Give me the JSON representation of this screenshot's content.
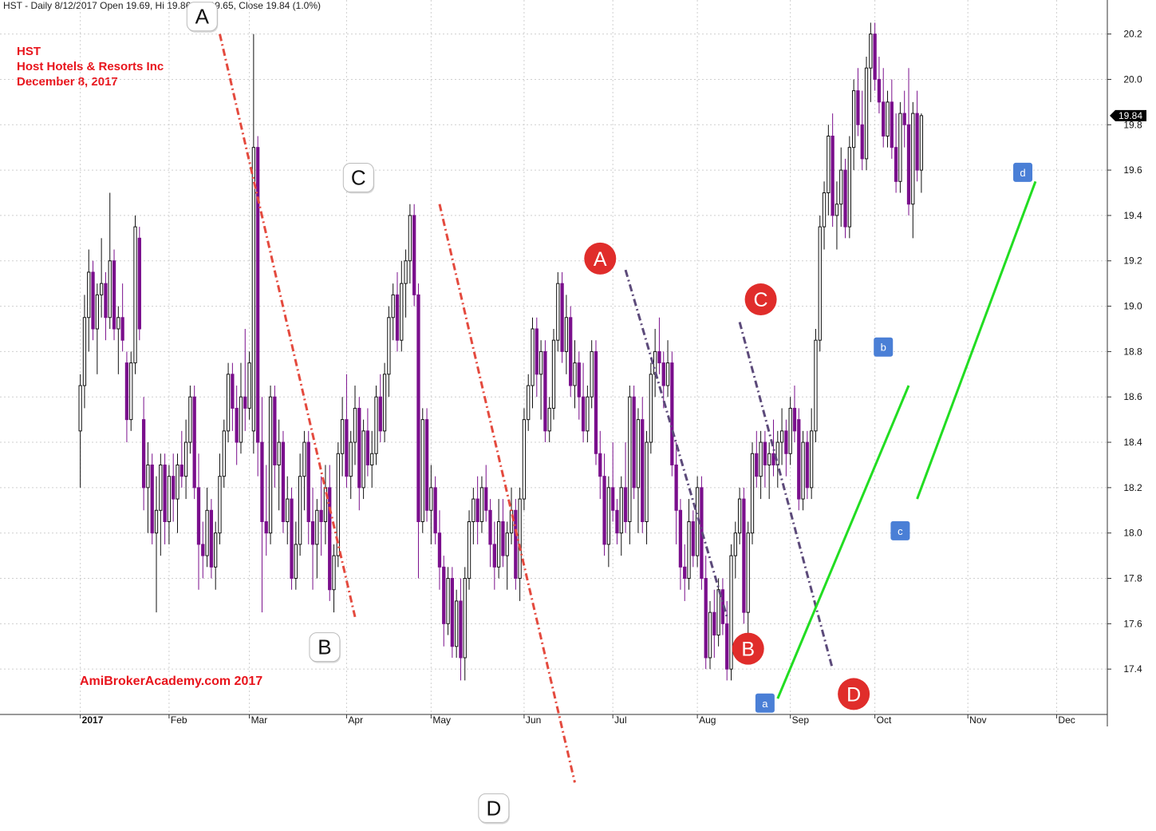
{
  "header": {
    "text": "HST - Daily 8/12/2017 Open 19.69, Hi 19.86, Lo 19.65, Close 19.84 (1.0%)"
  },
  "info": {
    "ticker": "HST",
    "company": "Host Hotels & Resorts Inc",
    "date": "December 8, 2017"
  },
  "watermark": "AmiBrokerAcademy.com  2017",
  "colors": {
    "bull": "#111111",
    "bear": "#7a0f8c",
    "red_dash": "#e44a3e",
    "purple_dash": "#5c4a7a",
    "green": "#22dd22",
    "badge_red": "#e02d2b",
    "badge_blue": "#4a7fd6"
  },
  "chart_data": {
    "type": "candlestick",
    "title": "HST - Daily",
    "ylim": [
      17.2,
      20.35
    ],
    "y_ticks": [
      "17.4",
      "17.6",
      "17.8",
      "18.0",
      "18.2",
      "18.4",
      "18.6",
      "18.8",
      "19.0",
      "19.2",
      "19.4",
      "19.6",
      "19.8",
      "20.0",
      "20.2"
    ],
    "last_close_label": "19.84",
    "months": [
      {
        "label": "2017",
        "day": 0
      },
      {
        "label": "Feb",
        "day": 21
      },
      {
        "label": "Mar",
        "day": 40
      },
      {
        "label": "Apr",
        "day": 63
      },
      {
        "label": "May",
        "day": 83
      },
      {
        "label": "Jun",
        "day": 105
      },
      {
        "label": "Jul",
        "day": 126
      },
      {
        "label": "Aug",
        "day": 146
      },
      {
        "label": "Sep",
        "day": 168
      },
      {
        "label": "Oct",
        "day": 188
      },
      {
        "label": "Nov",
        "day": 210
      },
      {
        "label": "Dec",
        "day": 231
      }
    ],
    "x_domain": [
      -19,
      243
    ],
    "candles": [
      [
        18.45,
        18.7,
        18.2,
        18.65
      ],
      [
        18.65,
        19.05,
        18.55,
        18.95
      ],
      [
        18.95,
        19.25,
        18.8,
        19.15
      ],
      [
        19.15,
        19.2,
        18.85,
        18.9
      ],
      [
        18.9,
        19.1,
        18.7,
        19.05
      ],
      [
        19.05,
        19.3,
        18.95,
        19.1
      ],
      [
        19.1,
        19.15,
        18.85,
        18.95
      ],
      [
        18.95,
        19.5,
        18.9,
        19.2
      ],
      [
        19.2,
        19.25,
        18.85,
        18.9
      ],
      [
        18.9,
        19.0,
        18.7,
        18.95
      ],
      [
        18.95,
        19.1,
        18.8,
        18.85
      ],
      [
        18.75,
        18.8,
        18.4,
        18.5
      ],
      [
        18.5,
        18.8,
        18.45,
        18.75
      ],
      [
        18.75,
        19.4,
        18.7,
        19.35
      ],
      [
        19.3,
        19.35,
        18.85,
        18.9
      ],
      [
        18.5,
        18.6,
        18.1,
        18.2
      ],
      [
        18.2,
        18.4,
        18.0,
        18.3
      ],
      [
        18.3,
        18.35,
        17.95,
        18.0
      ],
      [
        18.0,
        18.25,
        17.65,
        18.1
      ],
      [
        18.1,
        18.35,
        17.9,
        18.3
      ],
      [
        18.3,
        18.35,
        17.95,
        18.05
      ],
      [
        18.05,
        18.3,
        17.95,
        18.25
      ],
      [
        18.25,
        18.35,
        18.05,
        18.15
      ],
      [
        18.15,
        18.35,
        18.0,
        18.3
      ],
      [
        18.3,
        18.45,
        18.2,
        18.25
      ],
      [
        18.25,
        18.5,
        18.15,
        18.4
      ],
      [
        18.4,
        18.65,
        18.35,
        18.6
      ],
      [
        18.6,
        18.65,
        18.15,
        18.2
      ],
      [
        18.2,
        18.35,
        17.75,
        17.95
      ],
      [
        17.95,
        18.05,
        17.8,
        17.9
      ],
      [
        17.9,
        18.2,
        17.85,
        18.1
      ],
      [
        18.1,
        18.15,
        17.8,
        17.85
      ],
      [
        17.85,
        18.05,
        17.75,
        18.0
      ],
      [
        18.0,
        18.35,
        17.95,
        18.25
      ],
      [
        18.25,
        18.5,
        18.2,
        18.45
      ],
      [
        18.45,
        18.75,
        18.4,
        18.7
      ],
      [
        18.7,
        18.75,
        18.45,
        18.55
      ],
      [
        18.55,
        18.65,
        18.3,
        18.4
      ],
      [
        18.4,
        18.75,
        18.35,
        18.6
      ],
      [
        18.6,
        18.9,
        18.45,
        18.55
      ],
      [
        18.55,
        18.8,
        18.5,
        18.75
      ],
      [
        18.45,
        20.2,
        18.35,
        19.7
      ],
      [
        19.7,
        19.75,
        18.25,
        18.4
      ],
      [
        18.4,
        18.6,
        17.65,
        18.05
      ],
      [
        18.05,
        18.3,
        17.9,
        18.0
      ],
      [
        18.0,
        18.65,
        17.95,
        18.6
      ],
      [
        18.6,
        18.65,
        18.2,
        18.3
      ],
      [
        18.3,
        18.5,
        18.1,
        18.4
      ],
      [
        18.4,
        18.45,
        18.0,
        18.05
      ],
      [
        18.05,
        18.25,
        17.95,
        18.15
      ],
      [
        18.15,
        18.2,
        17.75,
        17.8
      ],
      [
        17.8,
        18.05,
        17.75,
        17.95
      ],
      [
        17.95,
        18.35,
        17.9,
        18.25
      ],
      [
        18.25,
        18.45,
        18.1,
        18.4
      ],
      [
        18.4,
        18.45,
        17.95,
        18.05
      ],
      [
        18.05,
        18.2,
        17.75,
        17.95
      ],
      [
        17.95,
        18.15,
        17.8,
        18.1
      ],
      [
        18.1,
        18.25,
        17.9,
        18.05
      ],
      [
        18.05,
        18.3,
        17.95,
        18.2
      ],
      [
        18.2,
        18.3,
        17.7,
        17.75
      ],
      [
        17.75,
        17.95,
        17.65,
        17.9
      ],
      [
        17.9,
        18.4,
        17.85,
        18.35
      ],
      [
        18.35,
        18.6,
        18.25,
        18.5
      ],
      [
        18.5,
        18.7,
        18.2,
        18.25
      ],
      [
        18.25,
        18.45,
        18.15,
        18.4
      ],
      [
        18.4,
        18.65,
        18.3,
        18.55
      ],
      [
        18.55,
        18.6,
        18.1,
        18.2
      ],
      [
        18.2,
        18.5,
        18.15,
        18.45
      ],
      [
        18.45,
        18.55,
        18.25,
        18.3
      ],
      [
        18.3,
        18.45,
        18.2,
        18.35
      ],
      [
        18.35,
        18.65,
        18.3,
        18.6
      ],
      [
        18.6,
        18.7,
        18.4,
        18.45
      ],
      [
        18.45,
        18.75,
        18.4,
        18.7
      ],
      [
        18.7,
        19.0,
        18.6,
        18.95
      ],
      [
        18.95,
        19.1,
        18.85,
        19.05
      ],
      [
        19.05,
        19.15,
        18.8,
        18.85
      ],
      [
        18.85,
        19.2,
        18.8,
        19.1
      ],
      [
        19.1,
        19.25,
        18.95,
        19.2
      ],
      [
        19.2,
        19.45,
        19.1,
        19.4
      ],
      [
        19.4,
        19.45,
        19.0,
        19.05
      ],
      [
        19.05,
        19.1,
        17.8,
        18.05
      ],
      [
        18.05,
        18.55,
        18.0,
        18.5
      ],
      [
        18.5,
        18.55,
        18.05,
        18.1
      ],
      [
        18.1,
        18.3,
        17.95,
        18.2
      ],
      [
        18.2,
        18.25,
        17.95,
        18.0
      ],
      [
        18.0,
        18.1,
        17.75,
        17.85
      ],
      [
        17.85,
        17.9,
        17.5,
        17.6
      ],
      [
        17.6,
        17.85,
        17.55,
        17.8
      ],
      [
        17.8,
        17.85,
        17.45,
        17.5
      ],
      [
        17.5,
        17.75,
        17.45,
        17.7
      ],
      [
        17.7,
        17.8,
        17.35,
        17.45
      ],
      [
        17.45,
        17.85,
        17.35,
        17.8
      ],
      [
        17.8,
        18.1,
        17.75,
        18.05
      ],
      [
        18.05,
        18.2,
        17.95,
        18.15
      ],
      [
        18.15,
        18.25,
        17.95,
        18.05
      ],
      [
        18.05,
        18.25,
        18.0,
        18.2
      ],
      [
        18.2,
        18.3,
        18.05,
        18.1
      ],
      [
        18.1,
        18.15,
        17.85,
        17.95
      ],
      [
        17.95,
        18.05,
        17.75,
        17.85
      ],
      [
        17.85,
        18.15,
        17.8,
        18.05
      ],
      [
        18.05,
        18.15,
        17.85,
        17.9
      ],
      [
        17.9,
        18.05,
        17.75,
        18.0
      ],
      [
        18.0,
        18.2,
        17.95,
        18.1
      ],
      [
        18.1,
        18.15,
        17.75,
        17.8
      ],
      [
        17.8,
        18.2,
        17.7,
        18.15
      ],
      [
        18.15,
        18.55,
        18.1,
        18.5
      ],
      [
        18.5,
        18.7,
        18.45,
        18.65
      ],
      [
        18.65,
        18.95,
        18.55,
        18.9
      ],
      [
        18.9,
        18.95,
        18.6,
        18.7
      ],
      [
        18.7,
        18.85,
        18.5,
        18.8
      ],
      [
        18.8,
        18.85,
        18.4,
        18.45
      ],
      [
        18.45,
        18.6,
        18.4,
        18.55
      ],
      [
        18.55,
        18.9,
        18.5,
        18.85
      ],
      [
        18.85,
        19.15,
        18.8,
        19.1
      ],
      [
        19.1,
        19.15,
        18.75,
        18.8
      ],
      [
        18.8,
        19.05,
        18.7,
        18.95
      ],
      [
        18.95,
        19.0,
        18.6,
        18.65
      ],
      [
        18.65,
        18.85,
        18.55,
        18.75
      ],
      [
        18.75,
        18.8,
        18.5,
        18.6
      ],
      [
        18.6,
        18.75,
        18.4,
        18.45
      ],
      [
        18.45,
        18.65,
        18.4,
        18.6
      ],
      [
        18.6,
        18.85,
        18.55,
        18.8
      ],
      [
        18.8,
        18.85,
        18.3,
        18.35
      ],
      [
        18.35,
        18.45,
        18.15,
        18.25
      ],
      [
        18.25,
        18.35,
        17.9,
        17.95
      ],
      [
        17.95,
        18.25,
        17.85,
        18.2
      ],
      [
        18.2,
        18.4,
        18.05,
        18.1
      ],
      [
        18.1,
        18.15,
        17.95,
        18.0
      ],
      [
        18.0,
        18.25,
        17.9,
        18.2
      ],
      [
        18.2,
        18.4,
        18.0,
        18.05
      ],
      [
        18.05,
        18.65,
        17.95,
        18.6
      ],
      [
        18.6,
        18.65,
        18.15,
        18.2
      ],
      [
        18.2,
        18.55,
        18.0,
        18.5
      ],
      [
        18.5,
        18.6,
        18.0,
        18.05
      ],
      [
        18.05,
        18.45,
        17.95,
        18.4
      ],
      [
        18.4,
        18.75,
        18.35,
        18.7
      ],
      [
        18.7,
        18.9,
        18.6,
        18.8
      ],
      [
        18.8,
        18.95,
        18.7,
        18.75
      ],
      [
        18.75,
        18.8,
        18.55,
        18.65
      ],
      [
        18.65,
        18.85,
        18.6,
        18.75
      ],
      [
        18.75,
        18.8,
        18.25,
        18.3
      ],
      [
        18.3,
        18.4,
        17.95,
        18.1
      ],
      [
        18.1,
        18.15,
        17.75,
        17.85
      ],
      [
        17.85,
        17.95,
        17.7,
        17.8
      ],
      [
        17.8,
        18.15,
        17.75,
        18.05
      ],
      [
        18.05,
        18.1,
        17.85,
        17.9
      ],
      [
        17.9,
        18.25,
        17.85,
        18.2
      ],
      [
        18.2,
        18.25,
        17.75,
        17.8
      ],
      [
        17.8,
        17.9,
        17.4,
        17.45
      ],
      [
        17.45,
        17.7,
        17.4,
        17.65
      ],
      [
        17.65,
        17.75,
        17.45,
        17.55
      ],
      [
        17.55,
        17.8,
        17.5,
        17.75
      ],
      [
        17.75,
        17.8,
        17.55,
        17.6
      ],
      [
        17.6,
        17.7,
        17.35,
        17.4
      ],
      [
        17.4,
        17.95,
        17.35,
        17.9
      ],
      [
        17.9,
        18.05,
        17.8,
        18.0
      ],
      [
        18.0,
        18.2,
        17.95,
        18.15
      ],
      [
        18.15,
        18.2,
        17.6,
        17.65
      ],
      [
        17.65,
        18.05,
        17.55,
        18.0
      ],
      [
        18.0,
        18.4,
        17.95,
        18.35
      ],
      [
        18.35,
        18.45,
        18.2,
        18.25
      ],
      [
        18.25,
        18.45,
        18.15,
        18.4
      ],
      [
        18.4,
        18.45,
        18.2,
        18.3
      ],
      [
        18.3,
        18.4,
        18.15,
        18.35
      ],
      [
        18.35,
        18.5,
        18.25,
        18.3
      ],
      [
        18.3,
        18.45,
        18.2,
        18.4
      ],
      [
        18.4,
        18.55,
        18.3,
        18.45
      ],
      [
        18.45,
        18.5,
        18.25,
        18.35
      ],
      [
        18.35,
        18.6,
        18.3,
        18.55
      ],
      [
        18.55,
        18.65,
        18.4,
        18.45
      ],
      [
        18.5,
        18.55,
        18.1,
        18.15
      ],
      [
        18.15,
        18.45,
        18.1,
        18.4
      ],
      [
        18.4,
        18.45,
        18.15,
        18.2
      ],
      [
        18.2,
        18.55,
        18.15,
        18.45
      ],
      [
        18.45,
        18.9,
        18.4,
        18.85
      ],
      [
        18.85,
        19.4,
        18.8,
        19.35
      ],
      [
        19.35,
        19.55,
        19.25,
        19.5
      ],
      [
        19.5,
        19.8,
        19.4,
        19.75
      ],
      [
        19.75,
        19.85,
        19.35,
        19.4
      ],
      [
        19.4,
        19.55,
        19.25,
        19.45
      ],
      [
        19.45,
        19.7,
        19.35,
        19.6
      ],
      [
        19.6,
        19.65,
        19.3,
        19.35
      ],
      [
        19.35,
        19.75,
        19.3,
        19.7
      ],
      [
        19.7,
        20.0,
        19.6,
        19.95
      ],
      [
        19.95,
        20.05,
        19.75,
        19.8
      ],
      [
        19.8,
        19.95,
        19.6,
        19.65
      ],
      [
        19.65,
        20.1,
        19.6,
        20.05
      ],
      [
        20.05,
        20.25,
        19.9,
        20.2
      ],
      [
        20.2,
        20.25,
        19.95,
        20.0
      ],
      [
        20.0,
        20.1,
        19.85,
        19.9
      ],
      [
        19.9,
        20.05,
        19.7,
        19.75
      ],
      [
        19.75,
        19.95,
        19.7,
        19.9
      ],
      [
        19.9,
        20.0,
        19.65,
        19.7
      ],
      [
        19.7,
        19.85,
        19.5,
        19.55
      ],
      [
        19.55,
        19.9,
        19.5,
        19.85
      ],
      [
        19.85,
        19.95,
        19.7,
        19.8
      ],
      [
        19.8,
        20.05,
        19.4,
        19.45
      ],
      [
        19.45,
        19.9,
        19.3,
        19.85
      ],
      [
        19.85,
        19.95,
        19.55,
        19.6
      ],
      [
        19.6,
        19.85,
        19.5,
        19.84
      ]
    ],
    "annotations": {
      "letters_black": [
        {
          "label": "A",
          "day": 29,
          "price": 20.27
        },
        {
          "label": "B",
          "day": 58,
          "price": 17.49
        },
        {
          "label": "C",
          "day": 66,
          "price": 19.56
        },
        {
          "label": "D",
          "day": 98,
          "price": 16.78
        }
      ],
      "letters_red": [
        {
          "label": "A",
          "day": 123,
          "price": 19.21
        },
        {
          "label": "B",
          "day": 158,
          "price": 17.49
        },
        {
          "label": "C",
          "day": 161,
          "price": 19.03
        },
        {
          "label": "D",
          "day": 183,
          "price": 17.29
        }
      ],
      "labels_blue": [
        {
          "label": "a",
          "day": 162,
          "price": 17.25
        },
        {
          "label": "b",
          "day": 190,
          "price": 18.82
        },
        {
          "label": "c",
          "day": 194,
          "price": 18.01
        },
        {
          "label": "d",
          "day": 223,
          "price": 19.59
        }
      ],
      "lines": [
        {
          "style": "red_dash",
          "from": [
            33,
            20.2
          ],
          "to": [
            65,
            17.63
          ]
        },
        {
          "style": "red_dash",
          "from": [
            85,
            19.45
          ],
          "to": [
            117,
            16.9
          ]
        },
        {
          "style": "purple_dash",
          "from": [
            129,
            19.16
          ],
          "to": [
            153,
            17.63
          ]
        },
        {
          "style": "purple_dash",
          "from": [
            156,
            18.93
          ],
          "to": [
            178,
            17.4
          ]
        },
        {
          "style": "green",
          "from": [
            165,
            17.27
          ],
          "to": [
            196,
            18.65
          ]
        },
        {
          "style": "green",
          "from": [
            198,
            18.15
          ],
          "to": [
            226,
            19.55
          ]
        }
      ]
    }
  }
}
